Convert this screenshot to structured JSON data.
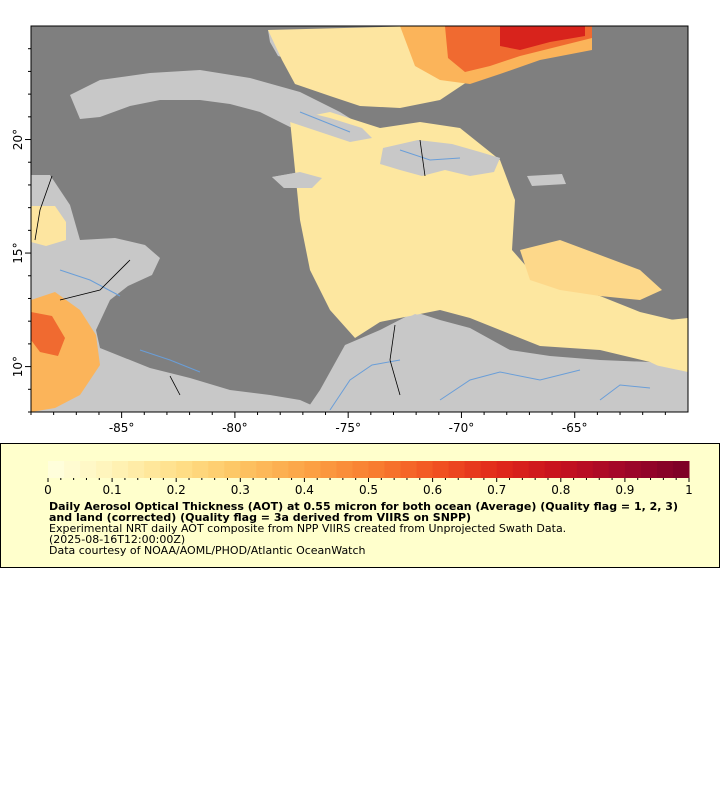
{
  "map": {
    "lon_range": [
      -89,
      -60
    ],
    "lat_range": [
      8,
      25
    ],
    "lon_ticks": [
      {
        "value": -85,
        "label": "-85°"
      },
      {
        "value": -80,
        "label": "-80°"
      },
      {
        "value": -75,
        "label": "-75°"
      },
      {
        "value": -70,
        "label": "-70°"
      },
      {
        "value": -65,
        "label": "-65°"
      }
    ],
    "lat_ticks": [
      {
        "value": 20,
        "label": "20°"
      },
      {
        "value": 15,
        "label": "15°"
      },
      {
        "value": 10,
        "label": "10°"
      }
    ],
    "colors": {
      "no_data": "#7f7f7f",
      "land": "#c8c8c8",
      "borders": "#000000",
      "rivers": "#6a9ed8"
    }
  },
  "colorbar": {
    "min": 0,
    "max": 1,
    "tick_labels": [
      "0",
      "0.1",
      "0.2",
      "0.3",
      "0.4",
      "0.5",
      "0.6",
      "0.7",
      "0.8",
      "0.9",
      "1"
    ],
    "colors": [
      "#ffffe0",
      "#fff3b8",
      "#ffe08a",
      "#fdc462",
      "#fca446",
      "#f98131",
      "#f25522",
      "#e1291a",
      "#c6111f",
      "#a00729",
      "#7a0025"
    ]
  },
  "legend": {
    "title": "Daily Aerosol Optical Thickness (AOT) at 0.55 micron for both ocean (Average) (Quality flag = 1, 2, 3) and land (corrected) (Quality flag = 3a derived from VIIRS on SNPP)",
    "line1": "Experimental NRT daily AOT composite from NPP VIIRS created from Unprojected Swath Data.",
    "line2": "(2025-08-16T12:00:00Z)",
    "line3": "Data courtesy of NOAA/AOML/PHOD/Atlantic OceanWatch",
    "background": "#ffffcc"
  }
}
